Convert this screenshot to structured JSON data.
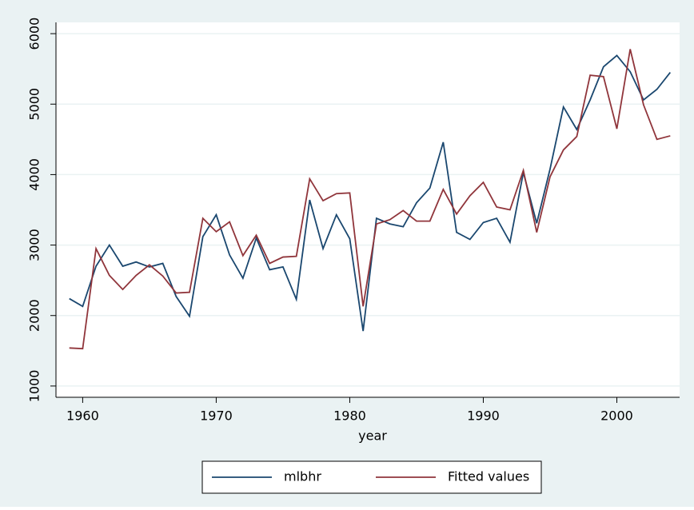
{
  "chart_data": {
    "type": "line",
    "xlabel": "year",
    "x": [
      1959,
      1960,
      1961,
      1962,
      1963,
      1964,
      1965,
      1966,
      1967,
      1968,
      1969,
      1970,
      1971,
      1972,
      1973,
      1974,
      1975,
      1976,
      1977,
      1978,
      1979,
      1980,
      1981,
      1982,
      1983,
      1984,
      1985,
      1986,
      1987,
      1988,
      1989,
      1990,
      1991,
      1992,
      1993,
      1994,
      1995,
      1996,
      1997,
      1998,
      1999,
      2000,
      2001,
      2002,
      2003,
      2004
    ],
    "series": [
      {
        "name": "mlbhr",
        "color": "#1a476f",
        "values": [
          2240,
          2130,
          2700,
          3000,
          2700,
          2760,
          2690,
          2740,
          2270,
          1990,
          3120,
          3430,
          2860,
          2530,
          3100,
          2650,
          2690,
          2230,
          3640,
          2950,
          3430,
          3090,
          1780,
          3380,
          3300,
          3260,
          3600,
          3810,
          4460,
          3180,
          3080,
          3320,
          3380,
          3040,
          4030,
          3310,
          4080,
          4960,
          4640,
          5060,
          5530,
          5690,
          5460,
          5060,
          5210,
          5450
        ]
      },
      {
        "name": "Fitted values",
        "color": "#90353b",
        "values": [
          1540,
          1530,
          2950,
          2570,
          2370,
          2570,
          2720,
          2560,
          2320,
          2330,
          3380,
          3190,
          3330,
          2850,
          3140,
          2740,
          2830,
          2840,
          3940,
          3630,
          3730,
          3740,
          2130,
          3300,
          3360,
          3490,
          3340,
          3340,
          3790,
          3440,
          3700,
          3890,
          3540,
          3500,
          4060,
          3180,
          3970,
          4350,
          4540,
          5410,
          5390,
          4650,
          5780,
          4990,
          4500,
          4550
        ]
      }
    ],
    "xlim": [
      1958,
      2004.7
    ],
    "xticks": [
      1960,
      1970,
      1980,
      1990,
      2000
    ],
    "ylim": [
      840,
      6160
    ],
    "yticks": [
      1000,
      2000,
      3000,
      4000,
      5000,
      6000
    ],
    "grid": true,
    "legend": "bottom"
  }
}
